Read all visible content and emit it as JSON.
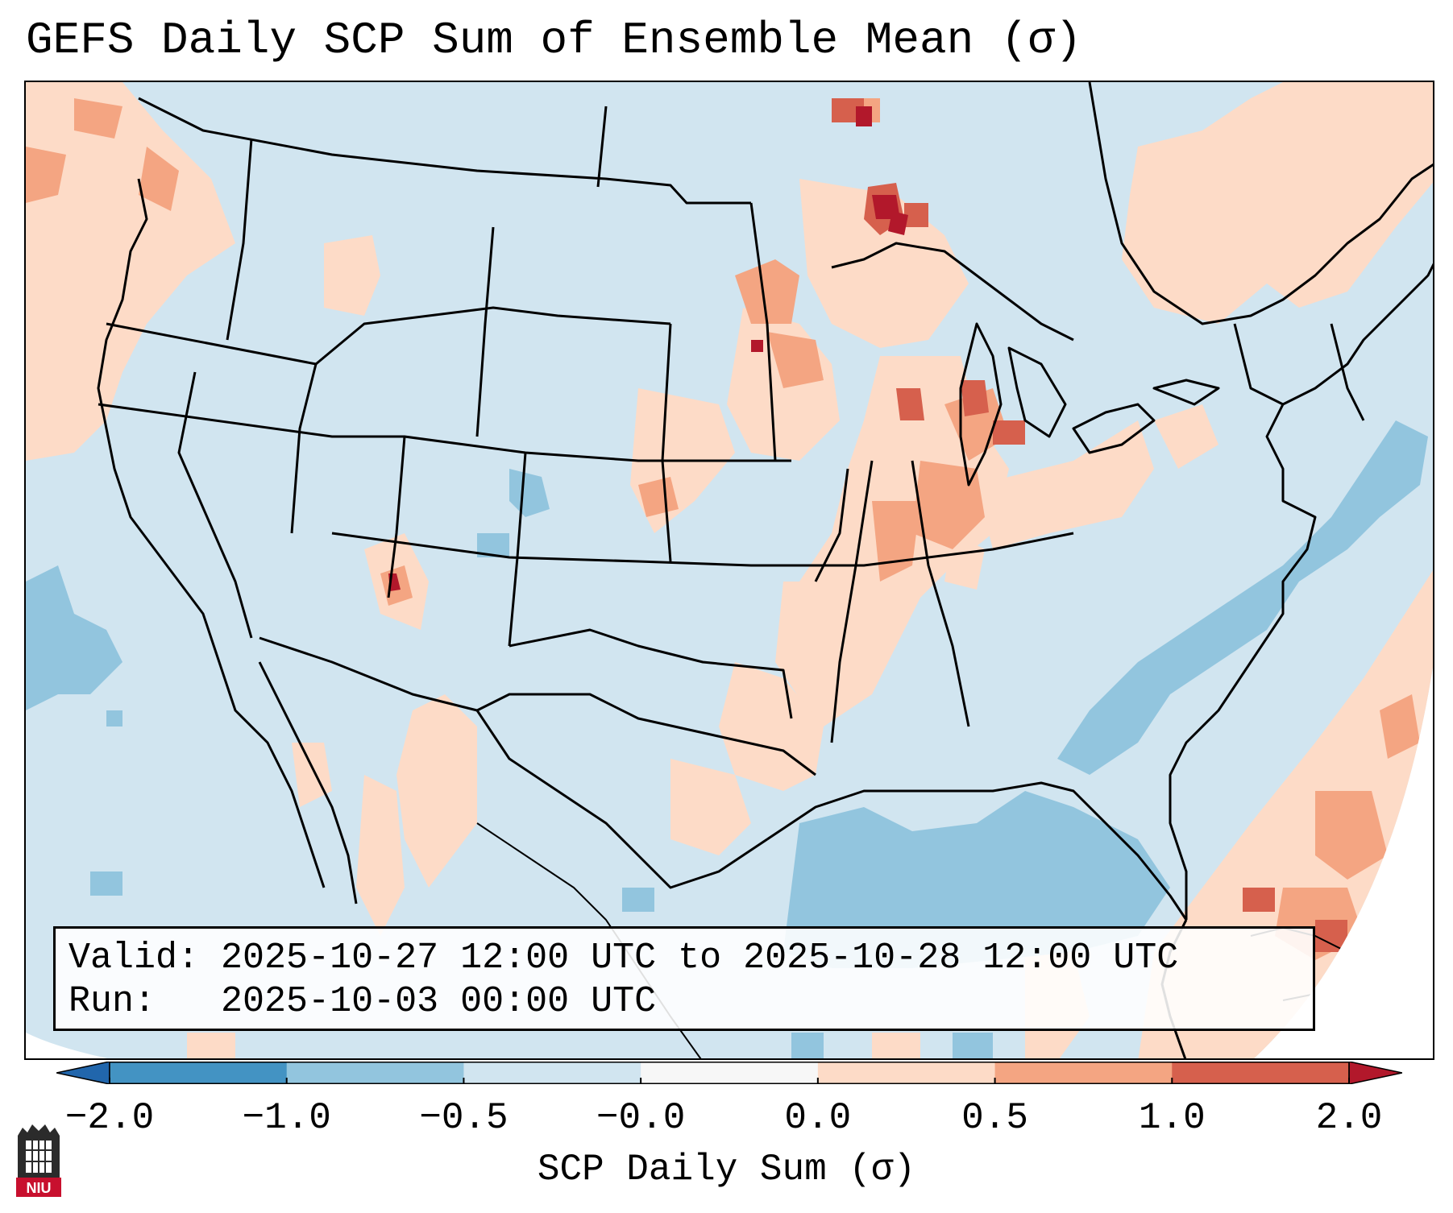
{
  "title": "GEFS Daily SCP Sum of Ensemble Mean (σ)",
  "info": {
    "valid_label": "Valid:",
    "valid_value": "2025-10-27 12:00 UTC to 2025-10-28 12:00 UTC",
    "run_label": "Run:",
    "run_value": "2025-10-03 00:00 UTC"
  },
  "colorbar": {
    "label": "SCP Daily Sum (σ)",
    "ticks": [
      "−2.0",
      "−1.0",
      "−0.5",
      "−0.0",
      "0.0",
      "0.5",
      "1.0",
      "2.0"
    ],
    "bins": [
      {
        "range": "< -2.0",
        "color": "#2166ac"
      },
      {
        "range": "-2.0 to -1.0",
        "color": "#4393c3"
      },
      {
        "range": "-1.0 to -0.5",
        "color": "#92c5de"
      },
      {
        "range": "-0.5 to -0.0",
        "color": "#d1e5f0"
      },
      {
        "range": "-0.0 to 0.0",
        "color": "#f7f7f7"
      },
      {
        "range": "0.0 to 0.5",
        "color": "#fddbc7"
      },
      {
        "range": "0.5 to 1.0",
        "color": "#f4a582"
      },
      {
        "range": "1.0 to 2.0",
        "color": "#d6604d"
      },
      {
        "range": "> 2.0",
        "color": "#b2182b"
      }
    ]
  },
  "logo": {
    "text": "NIU",
    "icon": "niu-logo-icon"
  }
}
